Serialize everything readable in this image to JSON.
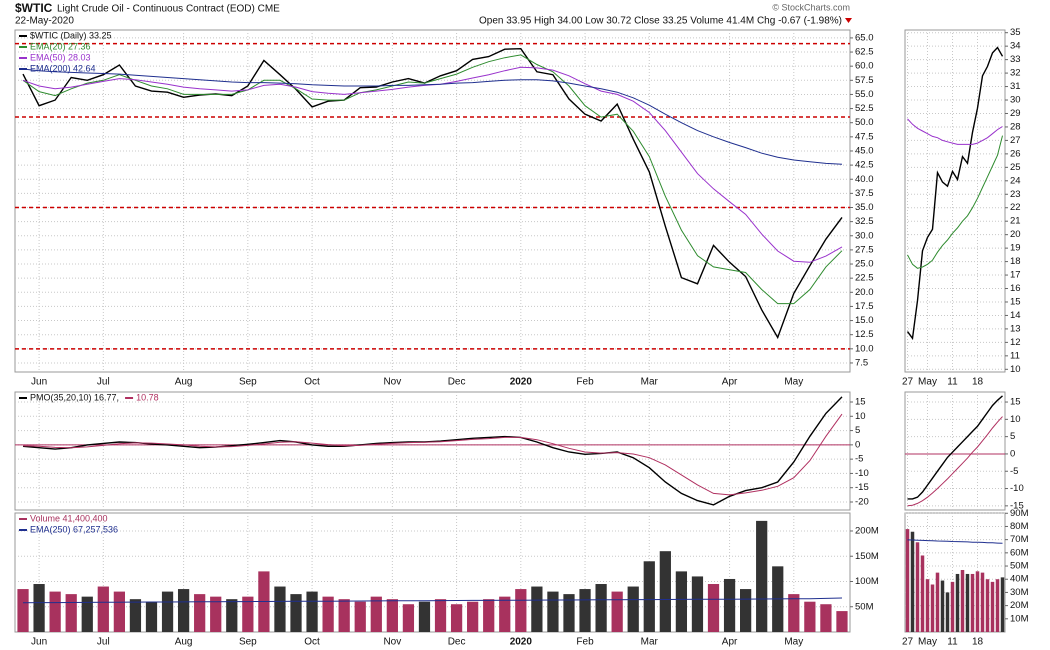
{
  "header": {
    "symbol": "$WTIC",
    "description": "Light Crude Oil - Continuous Contract (EOD) CME",
    "date": "22-May-2020",
    "quote": "Open 33.95 High 34.00 Low 30.72 Close 33.25 Volume 41.4M Chg -0.67 (-1.98%)",
    "copyright": "© StockCharts.com"
  },
  "chart_data": [
    {
      "type": "line",
      "legend": "column",
      "grid": true,
      "categories": [
        null,
        "Jun",
        null,
        null,
        null,
        "Jul",
        null,
        null,
        null,
        null,
        "Aug",
        null,
        null,
        null,
        "Sep",
        null,
        null,
        null,
        "Oct",
        null,
        null,
        null,
        null,
        "Nov",
        null,
        null,
        null,
        "Dec",
        null,
        null,
        null,
        "2020",
        null,
        null,
        null,
        "Feb",
        null,
        null,
        null,
        "Mar",
        null,
        null,
        null,
        null,
        "Apr",
        null,
        null,
        null,
        "May",
        null,
        null,
        null
      ],
      "ylim": [
        5.9,
        66.4
      ],
      "yticks": [
        7.5,
        {
          "value": 10,
          "label": "10.0"
        },
        12.5,
        {
          "value": 15,
          "label": "15.0"
        },
        17.5,
        {
          "value": 20,
          "label": "20.0"
        },
        22.5,
        {
          "value": 25,
          "label": "25.0"
        },
        27.5,
        {
          "value": 30,
          "label": "30.0"
        },
        32.5,
        {
          "value": 35,
          "label": "35.0"
        },
        37.5,
        {
          "value": 40,
          "label": "40.0"
        },
        42.5,
        {
          "value": 45,
          "label": "45.0"
        },
        47.5,
        {
          "value": 50,
          "label": "50.0"
        },
        52.5,
        {
          "value": 55,
          "label": "55.0"
        },
        57.5,
        {
          "value": 60,
          "label": "60.0"
        },
        62.5,
        {
          "value": 65,
          "label": "65.0"
        }
      ],
      "hlines": [
        64,
        51,
        35,
        10
      ],
      "hline_color": "#cc0000",
      "series": [
        {
          "name": "$WTIC (Daily) 33.25",
          "color": "#000000",
          "values": [
            58.6,
            53.0,
            54.0,
            58.0,
            57.5,
            58.5,
            60.2,
            56.5,
            55.6,
            55.4,
            54.5,
            54.9,
            55.1,
            54.8,
            56.5,
            61.0,
            58.5,
            55.9,
            52.8,
            53.8,
            54.0,
            56.2,
            56.3,
            57.2,
            57.8,
            57.0,
            58.3,
            59.2,
            61.2,
            61.7,
            63.0,
            63.1,
            59.0,
            58.5,
            54.2,
            51.5,
            50.3,
            53.3,
            47.1,
            41.3,
            31.7,
            22.6,
            21.5,
            28.3,
            25.3,
            22.8,
            16.9,
            12.0,
            19.8,
            24.7,
            29.4,
            33.25
          ]
        },
        {
          "name": "EMA(20) 27.36",
          "color": "#2e8b2e",
          "values": [
            57.5,
            55.5,
            54.8,
            56.0,
            57.0,
            57.5,
            58.5,
            57.5,
            56.5,
            56.0,
            55.0,
            55.0,
            55.0,
            55.0,
            55.8,
            57.5,
            57.5,
            56.0,
            54.2,
            54.0,
            54.0,
            55.3,
            55.8,
            56.5,
            57.2,
            57.0,
            57.8,
            58.6,
            59.8,
            60.8,
            61.5,
            62.0,
            60.3,
            59.0,
            56.5,
            53.0,
            51.0,
            51.5,
            48.5,
            44.0,
            37.0,
            31.0,
            26.5,
            24.5,
            24.0,
            23.5,
            20.5,
            18.0,
            18.0,
            20.5,
            24.5,
            27.36
          ]
        },
        {
          "name": "EMA(50) 28.03",
          "color": "#9932cc",
          "values": [
            57.5,
            56.5,
            56.0,
            56.3,
            56.8,
            57.3,
            57.8,
            57.6,
            57.2,
            56.8,
            56.3,
            56.0,
            55.8,
            55.6,
            55.8,
            56.6,
            56.8,
            56.3,
            55.5,
            55.2,
            55.0,
            55.3,
            55.6,
            55.9,
            56.3,
            56.6,
            56.8,
            57.3,
            57.9,
            58.5,
            59.2,
            59.8,
            59.7,
            59.3,
            58.3,
            56.9,
            55.6,
            55.0,
            53.8,
            51.8,
            48.6,
            44.8,
            41.0,
            38.3,
            36.0,
            33.8,
            30.3,
            27.3,
            25.5,
            25.3,
            26.4,
            28.03
          ]
        },
        {
          "name": "EMA(200) 42.64",
          "color": "#1f2f8f",
          "values": [
            59.5,
            59.2,
            59.0,
            58.9,
            58.8,
            58.7,
            58.6,
            58.4,
            58.2,
            58.0,
            57.8,
            57.6,
            57.4,
            57.2,
            57.1,
            57.1,
            57.0,
            56.9,
            56.7,
            56.6,
            56.5,
            56.5,
            56.5,
            56.6,
            56.6,
            56.7,
            56.8,
            57.0,
            57.1,
            57.3,
            57.5,
            57.6,
            57.6,
            57.4,
            57.0,
            56.5,
            56.0,
            55.4,
            54.4,
            53.1,
            51.5,
            50.0,
            48.6,
            47.5,
            46.5,
            45.6,
            44.6,
            43.9,
            43.4,
            43.1,
            42.8,
            42.64
          ]
        }
      ]
    },
    {
      "type": "line",
      "legend": "row",
      "grid": true,
      "ylim": [
        -22.8,
        18.5
      ],
      "yticks": [
        15,
        10,
        5,
        0,
        -5,
        -10,
        -15,
        -20
      ],
      "hlines": [
        0
      ],
      "hline_color": "#b03060",
      "series": [
        {
          "name": "PMO(35,20,10) 16.77,",
          "color": "#000000",
          "values": [
            -0.5,
            -1.0,
            -1.5,
            -1.0,
            0,
            0.5,
            1.0,
            0.8,
            0.3,
            0,
            -0.5,
            -1.0,
            -0.8,
            -0.3,
            0.2,
            0.8,
            1.5,
            1.0,
            0,
            -0.5,
            -0.5,
            0,
            0.5,
            0.8,
            1.0,
            1.0,
            1.3,
            1.8,
            2.3,
            2.6,
            2.9,
            2.6,
            1.0,
            -1.0,
            -2.5,
            -3.3,
            -3.0,
            -2.5,
            -4.5,
            -8,
            -13,
            -17,
            -19.5,
            -21,
            -18,
            -16,
            -15,
            -13,
            -6,
            3,
            11,
            16.77
          ]
        },
        {
          "name": "10.78",
          "color": "#b03060",
          "values": [
            -0.3,
            -0.5,
            -0.9,
            -1.0,
            -0.7,
            -0.2,
            0.4,
            0.7,
            0.6,
            0.3,
            0,
            -0.5,
            -0.7,
            -0.6,
            -0.2,
            0.3,
            0.9,
            1.1,
            0.6,
            0.1,
            -0.3,
            -0.2,
            0.2,
            0.5,
            0.8,
            0.9,
            1.1,
            1.5,
            1.9,
            2.2,
            2.6,
            2.6,
            1.8,
            0.4,
            -1.2,
            -2.5,
            -2.9,
            -2.7,
            -3.2,
            -4.5,
            -7,
            -10.5,
            -14,
            -17,
            -17.5,
            -16.8,
            -15.9,
            -14.5,
            -11.5,
            -5.5,
            3,
            10.78
          ]
        }
      ]
    },
    {
      "type": "bar",
      "legend": "column",
      "grid": true,
      "categories": [
        null,
        "Jun",
        null,
        null,
        null,
        "Jul",
        null,
        null,
        null,
        null,
        "Aug",
        null,
        null,
        null,
        "Sep",
        null,
        null,
        null,
        "Oct",
        null,
        null,
        null,
        null,
        "Nov",
        null,
        null,
        null,
        "Dec",
        null,
        null,
        null,
        "2020",
        null,
        null,
        null,
        "Feb",
        null,
        null,
        null,
        "Mar",
        null,
        null,
        null,
        null,
        "Apr",
        null,
        null,
        null,
        "May",
        null,
        null,
        null
      ],
      "ylim": [
        0,
        235.6
      ],
      "yticks": [
        {
          "value": 50,
          "label": "50M"
        },
        {
          "value": 100,
          "label": "100M"
        },
        {
          "value": 150,
          "label": "150M"
        },
        {
          "value": 200,
          "label": "200M"
        }
      ],
      "series": [
        {
          "name": "Volume 41,400,400",
          "color": "#a8325e",
          "down_color": "#333333",
          "values": [
            85,
            95,
            80,
            75,
            70,
            90,
            80,
            65,
            60,
            80,
            85,
            75,
            70,
            65,
            70,
            120,
            90,
            75,
            80,
            70,
            65,
            60,
            70,
            65,
            55,
            60,
            65,
            55,
            60,
            65,
            70,
            85,
            90,
            80,
            75,
            85,
            95,
            80,
            90,
            140,
            160,
            120,
            110,
            95,
            105,
            85,
            220,
            130,
            75,
            60,
            55,
            41.4004
          ]
        },
        {
          "name": "EMA(250) 67,257,536",
          "color": "#1f2f8f",
          "values": [
            58.0,
            58.2,
            58.3,
            58.5,
            58.6,
            58.8,
            59.0,
            59.1,
            59.3,
            59.4,
            59.6,
            59.8,
            59.9,
            60.1,
            60.2,
            60.4,
            60.6,
            60.7,
            60.9,
            61.0,
            61.2,
            61.4,
            61.5,
            61.7,
            61.8,
            62.0,
            62.2,
            62.3,
            62.5,
            62.6,
            62.8,
            63.0,
            63.1,
            63.3,
            63.4,
            63.6,
            63.8,
            63.9,
            64.1,
            64.2,
            64.4,
            64.6,
            64.7,
            64.9,
            65.0,
            65.2,
            65.4,
            65.5,
            65.7,
            65.8,
            66.5,
            67.257536
          ]
        }
      ]
    },
    {
      "type": "line",
      "grid": true,
      "categories": [
        "27",
        null,
        null,
        null,
        "May",
        null,
        null,
        null,
        null,
        "11",
        null,
        null,
        null,
        null,
        "18",
        null,
        null,
        null,
        null,
        null
      ],
      "ylim": [
        9.8,
        35.2
      ],
      "yticks": [
        10,
        11,
        12,
        13,
        14,
        15,
        16,
        17,
        18,
        19,
        20,
        21,
        22,
        23,
        24,
        25,
        26,
        27,
        28,
        29,
        30,
        31,
        32,
        33,
        34,
        35
      ],
      "series": [
        {
          "color": "#000000",
          "values": [
            12.8,
            12.3,
            15.1,
            18.8,
            19.8,
            20.4,
            24.6,
            23.9,
            23.6,
            24.7,
            24.1,
            25.8,
            25.3,
            27.6,
            29.4,
            31.8,
            32.5,
            33.5,
            33.9,
            33.25
          ]
        },
        {
          "color": "#2e8b2e",
          "values": [
            18.5,
            17.8,
            17.5,
            17.6,
            17.8,
            18.1,
            18.7,
            19.2,
            19.6,
            20.1,
            20.5,
            21.0,
            21.4,
            22.0,
            22.7,
            23.5,
            24.3,
            25.1,
            25.9,
            27.36
          ]
        },
        {
          "color": "#9932cc",
          "values": [
            28.6,
            28.2,
            27.9,
            27.7,
            27.5,
            27.3,
            27.2,
            27.0,
            26.9,
            26.8,
            26.7,
            26.7,
            26.7,
            26.7,
            26.8,
            27.0,
            27.2,
            27.5,
            27.8,
            28.03
          ]
        }
      ]
    },
    {
      "type": "line",
      "grid": true,
      "ylim": [
        -16.2,
        17.9
      ],
      "yticks": [
        15,
        10,
        5,
        0,
        -5,
        -10,
        -15
      ],
      "hlines": [
        0
      ],
      "hline_color": "#b03060",
      "series": [
        {
          "color": "#000000",
          "values": [
            -13,
            -13,
            -12.5,
            -11,
            -9,
            -7,
            -5,
            -3,
            -1,
            0.5,
            2,
            3.5,
            5,
            6.5,
            8,
            10,
            12,
            14,
            15.5,
            16.77
          ]
        },
        {
          "color": "#b03060",
          "values": [
            -15,
            -14.8,
            -14.3,
            -13.5,
            -12.5,
            -11.3,
            -10,
            -8.6,
            -7.2,
            -5.7,
            -4.2,
            -2.7,
            -1.2,
            0.5,
            2,
            3.8,
            5.6,
            7.5,
            9.2,
            10.78
          ]
        }
      ]
    },
    {
      "type": "bar",
      "grid": true,
      "categories": [
        "27",
        null,
        null,
        null,
        "May",
        null,
        null,
        null,
        null,
        "11",
        null,
        null,
        null,
        null,
        "18",
        null,
        null,
        null,
        null,
        null
      ],
      "ylim": [
        0,
        90.2
      ],
      "yticks": [
        {
          "value": 10,
          "label": "10M"
        },
        {
          "value": 20,
          "label": "20M"
        },
        {
          "value": 30,
          "label": "30M"
        },
        {
          "value": 40,
          "label": "40M"
        },
        {
          "value": 50,
          "label": "50M"
        },
        {
          "value": 60,
          "label": "60M"
        },
        {
          "value": 70,
          "label": "70M"
        },
        {
          "value": 80,
          "label": "80M"
        },
        {
          "value": 90,
          "label": "90M"
        }
      ],
      "series": [
        {
          "color": "#a8325e",
          "down_color": "#333333",
          "values": [
            78,
            76,
            68,
            58,
            40,
            36,
            45,
            39,
            30,
            38,
            44,
            47,
            44,
            44,
            46,
            45,
            40,
            38,
            40,
            41.4004
          ]
        },
        {
          "color": "#1f2f8f",
          "values": [
            69.8,
            69.7,
            69.6,
            69.4,
            69.3,
            69.2,
            69.0,
            68.9,
            68.8,
            68.6,
            68.5,
            68.4,
            68.3,
            68.1,
            68.0,
            67.9,
            67.7,
            67.6,
            67.4,
            67.257536
          ]
        }
      ]
    }
  ]
}
